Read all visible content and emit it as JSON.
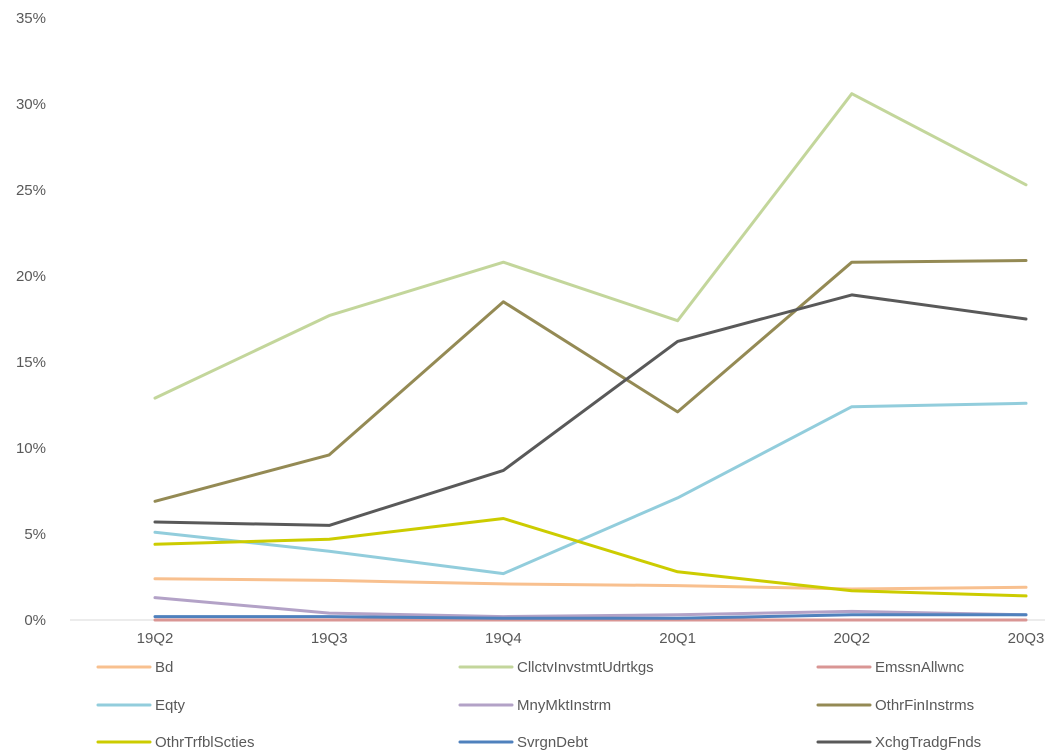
{
  "chart_data": {
    "type": "line",
    "title": "",
    "xlabel": "",
    "ylabel": "",
    "categories": [
      "19Q2",
      "19Q3",
      "19Q4",
      "20Q1",
      "20Q2",
      "20Q3"
    ],
    "ylim": [
      0,
      35
    ],
    "y_ticks": [
      {
        "value": 0,
        "label": "0%"
      },
      {
        "value": 5,
        "label": "5%"
      },
      {
        "value": 10,
        "label": "10%"
      },
      {
        "value": 15,
        "label": "15%"
      },
      {
        "value": 20,
        "label": "20%"
      },
      {
        "value": 25,
        "label": "25%"
      },
      {
        "value": 30,
        "label": "30%"
      },
      {
        "value": 35,
        "label": "35%"
      }
    ],
    "grid": false,
    "legend_position": "bottom",
    "series": [
      {
        "name": "Bd",
        "color": "#F8C08F",
        "values": [
          2.4,
          2.3,
          2.1,
          2.0,
          1.8,
          1.9
        ]
      },
      {
        "name": "CllctvInvstmtUdrtkgs",
        "color": "#C3D69B",
        "values": [
          12.9,
          17.7,
          20.8,
          17.4,
          30.6,
          25.3
        ]
      },
      {
        "name": "EmssnAllwnc",
        "color": "#D99694",
        "values": [
          0.0,
          0.0,
          0.0,
          0.0,
          0.0,
          0.0
        ]
      },
      {
        "name": "Eqty",
        "color": "#92CDDC",
        "values": [
          5.1,
          4.0,
          2.7,
          7.1,
          12.4,
          12.6
        ]
      },
      {
        "name": "MnyMktInstrm",
        "color": "#B3A2C7",
        "values": [
          1.3,
          0.4,
          0.2,
          0.3,
          0.5,
          0.3
        ]
      },
      {
        "name": "OthrFinInstrms",
        "color": "#948A54",
        "values": [
          6.9,
          9.6,
          18.5,
          12.1,
          20.8,
          20.9
        ]
      },
      {
        "name": "OthrTrfblScties",
        "color": "#CCCC00",
        "values": [
          4.4,
          4.7,
          5.9,
          2.8,
          1.7,
          1.4
        ]
      },
      {
        "name": "SvrgnDebt",
        "color": "#4F81BD",
        "values": [
          0.2,
          0.2,
          0.1,
          0.1,
          0.3,
          0.3
        ]
      },
      {
        "name": "XchgTradgFnds",
        "color": "#595959",
        "values": [
          5.7,
          5.5,
          8.7,
          16.2,
          18.9,
          17.5
        ]
      }
    ]
  }
}
